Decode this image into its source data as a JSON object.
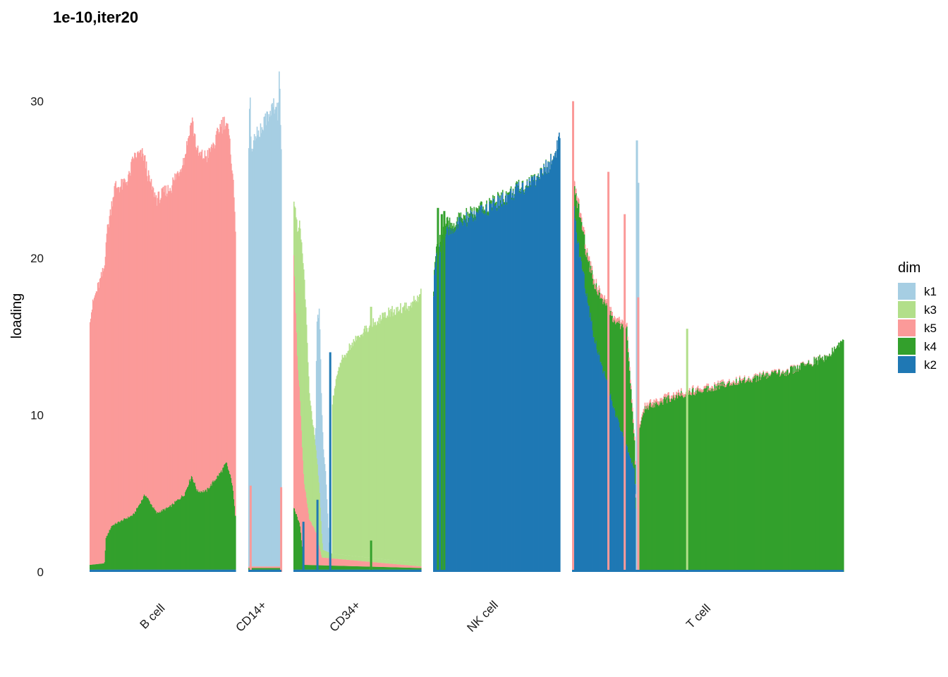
{
  "chart_data": {
    "type": "bar",
    "title": "1e-10,iter20",
    "xlabel": "",
    "ylabel": "loading",
    "ylim": [
      0,
      33
    ],
    "yticks": [
      0,
      10,
      20,
      30
    ],
    "stacked": true,
    "grid": false,
    "legend": {
      "title": "dim",
      "placement": "right",
      "entries": [
        {
          "key": "k1",
          "color": "#A6CEE3"
        },
        {
          "key": "k3",
          "color": "#B2DF8A"
        },
        {
          "key": "k5",
          "color": "#FB9A99"
        },
        {
          "key": "k4",
          "color": "#33A02C"
        },
        {
          "key": "k2",
          "color": "#1F78B4"
        }
      ]
    },
    "stack_order_bottom_to_top": [
      "k2",
      "k4",
      "k5",
      "k3",
      "k1"
    ],
    "groups": [
      {
        "name": "B cell",
        "n": 210,
        "profiles": {
          "k2": [
            [
              0,
              0.15
            ],
            [
              1,
              0.15
            ]
          ],
          "k4": [
            [
              0,
              0.3
            ],
            [
              0.1,
              0.4
            ],
            [
              0.11,
              2.0
            ],
            [
              0.15,
              2.8
            ],
            [
              0.3,
              3.5
            ],
            [
              0.38,
              4.8
            ],
            [
              0.42,
              4.2
            ],
            [
              0.46,
              3.6
            ],
            [
              0.55,
              4.0
            ],
            [
              0.65,
              4.8
            ],
            [
              0.7,
              6.0
            ],
            [
              0.74,
              5.0
            ],
            [
              0.8,
              5.0
            ],
            [
              0.9,
              6.2
            ],
            [
              0.94,
              6.8
            ],
            [
              0.98,
              5.5
            ],
            [
              1,
              3.5
            ]
          ],
          "k5": [
            [
              0,
              15.8
            ],
            [
              0.03,
              17.0
            ],
            [
              0.08,
              18.3
            ],
            [
              0.13,
              19.8
            ],
            [
              0.17,
              21.5
            ],
            [
              0.22,
              21.3
            ],
            [
              0.27,
              21.7
            ],
            [
              0.3,
              22.8
            ],
            [
              0.36,
              22.0
            ],
            [
              0.4,
              20.5
            ],
            [
              0.45,
              20.0
            ],
            [
              0.55,
              20.3
            ],
            [
              0.6,
              20.8
            ],
            [
              0.65,
              21.5
            ],
            [
              0.7,
              22.8
            ],
            [
              0.74,
              21.5
            ],
            [
              0.8,
              21.3
            ],
            [
              0.86,
              21.5
            ],
            [
              0.9,
              22.2
            ],
            [
              0.95,
              21.5
            ],
            [
              0.98,
              20.0
            ],
            [
              1,
              18.3
            ]
          ]
        },
        "spikes": []
      },
      {
        "name": "CD14+",
        "n": 48,
        "profiles": {
          "k2": [
            [
              0,
              0.15
            ],
            [
              1,
              0.15
            ]
          ],
          "k4": [
            [
              0,
              0.1
            ],
            [
              1,
              0.1
            ]
          ],
          "k5": [
            [
              0,
              0.1
            ],
            [
              1,
              0.1
            ]
          ],
          "k1": [
            [
              0,
              26.5
            ],
            [
              0.03,
              31.0
            ],
            [
              0.06,
              26.8
            ],
            [
              0.2,
              27.2
            ],
            [
              0.4,
              28.0
            ],
            [
              0.6,
              28.8
            ],
            [
              0.8,
              29.5
            ],
            [
              0.88,
              30.0
            ],
            [
              0.9,
              27.5
            ],
            [
              0.94,
              32.5
            ],
            [
              0.97,
              28.0
            ],
            [
              1,
              27.0
            ]
          ]
        },
        "spikes": [
          {
            "pos": 0.04,
            "k5": 5.5
          },
          {
            "pos": 0.96,
            "k5": 5.4
          }
        ]
      },
      {
        "name": "CD34+",
        "n": 182,
        "profiles": {
          "k2": [
            [
              0,
              0.15
            ],
            [
              1,
              0.15
            ]
          ],
          "k4": [
            [
              0,
              4.0
            ],
            [
              0.05,
              2.8
            ],
            [
              0.08,
              0.3
            ],
            [
              1,
              0.1
            ]
          ],
          "k5": [
            [
              0,
              16.0
            ],
            [
              0.03,
              10.0
            ],
            [
              0.07,
              6.0
            ],
            [
              0.12,
              3.0
            ],
            [
              0.18,
              2.0
            ],
            [
              0.22,
              0.5
            ],
            [
              1,
              0.1
            ]
          ],
          "k3": [
            [
              0,
              3.5
            ],
            [
              0.04,
              10.0
            ],
            [
              0.08,
              13.5
            ],
            [
              0.12,
              8.0
            ],
            [
              0.17,
              5.5
            ],
            [
              0.2,
              4.0
            ],
            [
              0.23,
              0.5
            ],
            [
              0.3,
              0.3
            ],
            [
              1,
              0.2
            ]
          ],
          "k1": [
            [
              0.17,
              0.0
            ],
            [
              0.18,
              8.5
            ],
            [
              0.2,
              11.0
            ],
            [
              0.22,
              7.5
            ],
            [
              0.25,
              5.0
            ],
            [
              0.28,
              0.0
            ]
          ],
          "k3b": [
            [
              0.3,
              9.5
            ],
            [
              0.35,
              12.0
            ],
            [
              0.45,
              13.5
            ],
            [
              0.6,
              14.8
            ],
            [
              0.75,
              15.8
            ],
            [
              0.9,
              16.3
            ],
            [
              1,
              17.2
            ]
          ]
        },
        "spikes": [
          {
            "pos": 0.07,
            "k2": 3.2
          },
          {
            "pos": 0.18,
            "k2": 4.6
          },
          {
            "pos": 0.28,
            "k2": 14.0
          },
          {
            "pos": 0.6,
            "k3": 16.9
          },
          {
            "pos": 0.6,
            "k4": 2.0
          }
        ]
      },
      {
        "name": "NK cell",
        "n": 182,
        "profiles": {
          "k2": [
            [
              0,
              17.8
            ],
            [
              0.01,
              19.5
            ],
            [
              0.04,
              20.5
            ],
            [
              0.1,
              21.5
            ],
            [
              0.2,
              22.2
            ],
            [
              0.4,
              23.0
            ],
            [
              0.6,
              24.0
            ],
            [
              0.8,
              25.0
            ],
            [
              0.9,
              25.8
            ],
            [
              0.96,
              26.6
            ],
            [
              1,
              27.8
            ]
          ],
          "k4": [
            [
              0,
              0.3
            ],
            [
              0.08,
              0.8
            ],
            [
              0.15,
              0.3
            ],
            [
              1,
              0.0
            ]
          ]
        },
        "spikes": [
          {
            "pos": 0.03,
            "k4": 23.2
          },
          {
            "pos": 0.06,
            "k4": 22.8
          },
          {
            "pos": 0.08,
            "k4": 23.0
          }
        ]
      },
      {
        "name": "T cell",
        "n": 390,
        "profiles": {
          "k2": [
            [
              0,
              24.0
            ],
            [
              0.02,
              21.0
            ],
            [
              0.05,
              18.0
            ],
            [
              0.08,
              15.0
            ],
            [
              0.12,
              12.5
            ],
            [
              0.16,
              10.0
            ],
            [
              0.2,
              8.0
            ],
            [
              0.23,
              6.5
            ],
            [
              0.24,
              0.0
            ],
            [
              1,
              0.0
            ]
          ],
          "k4": [
            [
              0,
              0.5
            ],
            [
              0.02,
              2.5
            ],
            [
              0.05,
              2.5
            ],
            [
              0.1,
              4.0
            ],
            [
              0.15,
              5.5
            ],
            [
              0.2,
              7.5
            ],
            [
              0.235,
              0.5
            ],
            [
              0.245,
              9.0
            ],
            [
              0.27,
              10.5
            ],
            [
              0.4,
              11.3
            ],
            [
              0.6,
              12.1
            ],
            [
              0.8,
              12.8
            ],
            [
              0.95,
              13.8
            ],
            [
              1,
              14.8
            ]
          ],
          "k5": [
            [
              0,
              0.3
            ],
            [
              1,
              0.0
            ]
          ],
          "k1": [
            [
              0,
              0.0
            ],
            [
              1,
              0.0
            ]
          ]
        },
        "spikes": [
          {
            "pos": 0.0,
            "k5": 30.0
          },
          {
            "pos": 0.13,
            "k5": 25.5
          },
          {
            "pos": 0.19,
            "k5": 22.8
          },
          {
            "pos": 0.235,
            "k1": 27.5
          },
          {
            "pos": 0.24,
            "k1": 24.8
          },
          {
            "pos": 0.24,
            "k5": 17.5
          },
          {
            "pos": 0.42,
            "k3": 15.5
          }
        ]
      }
    ]
  }
}
